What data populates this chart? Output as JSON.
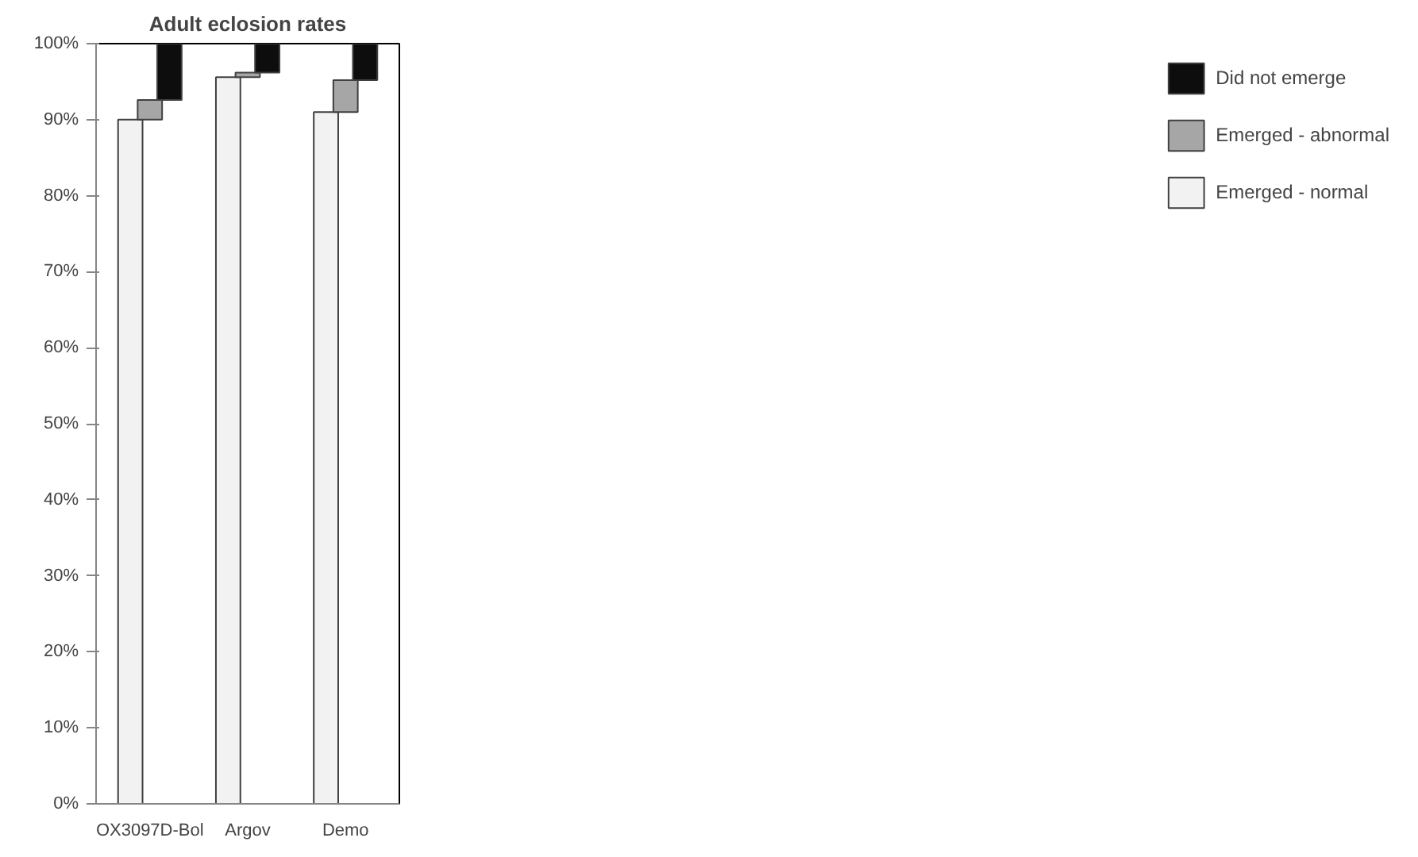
{
  "chart_data": {
    "type": "bar",
    "stacked": true,
    "title": "Adult eclosion rates",
    "categories": [
      "OX3097D-Bol",
      "Argov",
      "Demo"
    ],
    "series": [
      {
        "name": "Emerged - normal",
        "color": "#f2f2f2",
        "values": [
          90,
          95.6,
          91
        ]
      },
      {
        "name": "Emerged - abnormal",
        "color": "#a6a6a6",
        "values": [
          2.6,
          0.6,
          4.2
        ]
      },
      {
        "name": "Did not emerge",
        "color": "#0d0d0d",
        "values": [
          7.4,
          3.8,
          4.8
        ]
      }
    ],
    "ylim": [
      0,
      100
    ],
    "yticks": [
      {
        "value": 0,
        "label": "0%"
      },
      {
        "value": 10,
        "label": "10%"
      },
      {
        "value": 20,
        "label": "20%"
      },
      {
        "value": 30,
        "label": "30%"
      },
      {
        "value": 40,
        "label": "40%"
      },
      {
        "value": 50,
        "label": "50%"
      },
      {
        "value": 60,
        "label": "60%"
      },
      {
        "value": 70,
        "label": "70%"
      },
      {
        "value": 80,
        "label": "80%"
      },
      {
        "value": 90,
        "label": "90%"
      },
      {
        "value": 100,
        "label": "100%"
      }
    ],
    "grid": false,
    "legend": "right"
  }
}
